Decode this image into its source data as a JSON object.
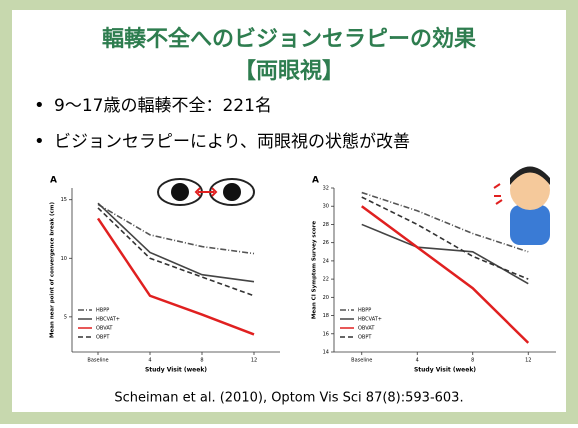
{
  "title": [
    "輻輳不全へのビジョンセラピーの効果",
    "【両眼視】"
  ],
  "bullets": [
    "9〜17歳の輻輳不全：221名",
    "ビジョンセラピーにより、両眼視の状態が改善"
  ],
  "citation": "Scheiman et al. (2010), Optom Vis Sci 87(8):593-603.",
  "chart_data": [
    {
      "type": "line",
      "panel": "A",
      "y_label": "Mean near point of convergence break (cm)",
      "x_label": "Study Visit (week)",
      "categories": [
        "Baseline",
        "4",
        "8",
        "12"
      ],
      "ylim": [
        2,
        16
      ],
      "yticks": [
        5,
        10,
        15
      ],
      "series": [
        {
          "name": "HBPP",
          "color": "#555555",
          "style": "dashdot",
          "values": [
            14.6,
            12,
            11,
            10.4
          ]
        },
        {
          "name": "HBCVAT+",
          "color": "#444444",
          "style": "solid",
          "values": [
            14.7,
            10.5,
            8.6,
            8
          ]
        },
        {
          "name": "OBVAT",
          "color": "#e02020",
          "style": "solid",
          "values": [
            13.4,
            6.8,
            5.2,
            3.5
          ]
        },
        {
          "name": "OBPT",
          "color": "#333333",
          "style": "dashed",
          "values": [
            14.3,
            10,
            8.4,
            6.8
          ]
        }
      ]
    },
    {
      "type": "line",
      "panel": "A",
      "y_label": "Mean CI Symptom Survey score",
      "x_label": "Study Visit (week)",
      "categories": [
        "Baseline",
        "4",
        "8",
        "12"
      ],
      "ylim": [
        14,
        32
      ],
      "yticks": [
        14,
        16,
        18,
        20,
        22,
        24,
        26,
        28,
        30,
        32
      ],
      "series": [
        {
          "name": "HBPP",
          "color": "#555555",
          "style": "dashdot",
          "values": [
            31.5,
            29.5,
            27,
            25
          ]
        },
        {
          "name": "HBCVAT+",
          "color": "#444444",
          "style": "solid",
          "values": [
            28,
            25.5,
            25,
            21.5
          ]
        },
        {
          "name": "OBVAT",
          "color": "#e02020",
          "style": "solid",
          "values": [
            30,
            25.5,
            21,
            15
          ]
        },
        {
          "name": "OBPT",
          "color": "#333333",
          "style": "dashed",
          "values": [
            31,
            28,
            24.5,
            22
          ]
        }
      ]
    }
  ]
}
